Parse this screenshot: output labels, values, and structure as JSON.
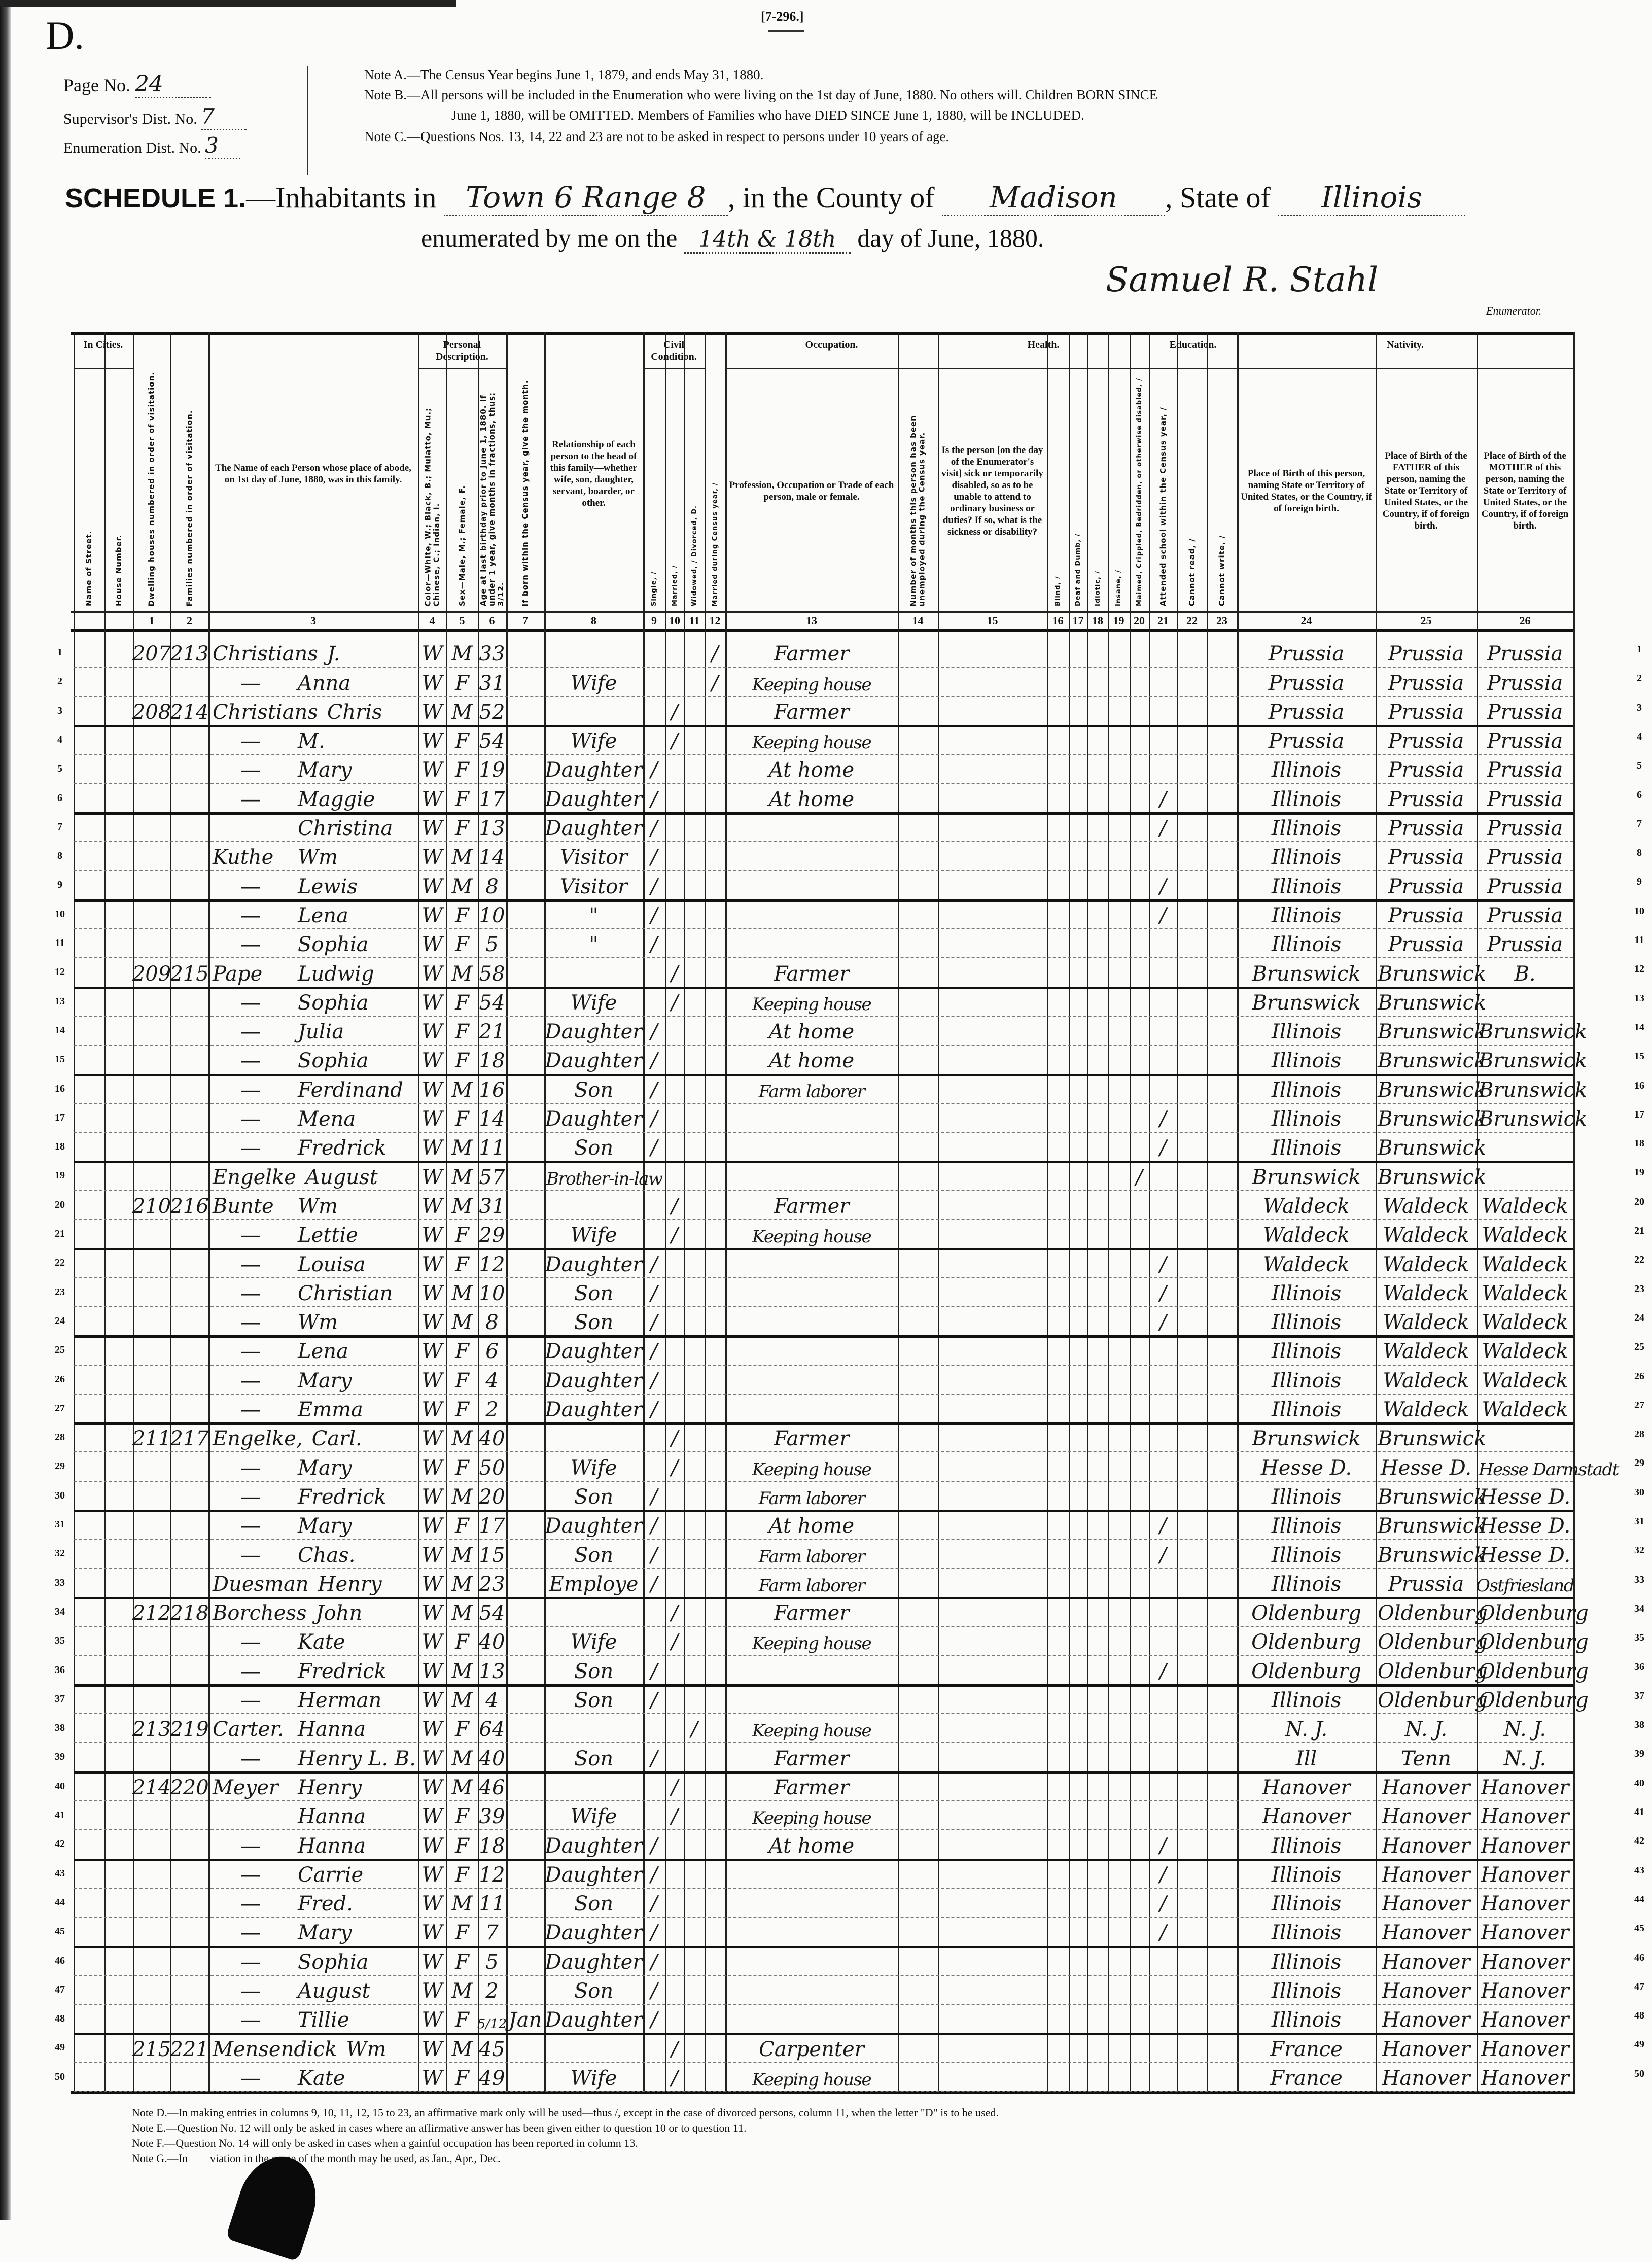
{
  "form_number": "[7-296.]",
  "form_letter": "D.",
  "page_info": {
    "page_label": "Page No.",
    "page_value": "24",
    "supervisor_label": "Supervisor's Dist. No.",
    "supervisor_value": "7",
    "enumeration_label": "Enumeration Dist. No.",
    "enumeration_value": "3"
  },
  "notes_top": [
    "Note A.—The Census Year begins June 1, 1879, and ends May 31, 1880.",
    "Note B.—All persons will be included in the Enumeration who were living on the 1st day of June, 1880.  No others will.  Children BORN SINCE",
    "June 1, 1880, will be OMITTED.  Members of Families who have DIED SINCE June 1, 1880, will be INCLUDED.",
    "Note C.—Questions Nos. 13, 14, 22 and 23 are not to be asked in respect to persons under 10 years of age."
  ],
  "schedule": {
    "title": "SCHEDULE 1.",
    "inhabitants_in": "—Inhabitants in",
    "place": "Town 6 Range 8",
    "county_label": ", in the County of",
    "county": "Madison",
    "state_label": ", State of",
    "state": "Illinois",
    "enumerated_label": "enumerated by me on the",
    "days": "14th & 18th",
    "day_suffix": "day of June, 1880.",
    "signature": "Samuel R. Stahl",
    "enumerator_label": "Enumerator."
  },
  "header": {
    "groups": {
      "in_cities": "In Cities.",
      "personal": "Personal Description.",
      "civil": "Civil Condition.",
      "occupation": "Occupation.",
      "health": "Health.",
      "education": "Education.",
      "nativity": "Nativity."
    },
    "columns": [
      {
        "label": "Name of Street.",
        "num": ""
      },
      {
        "label": "House Number.",
        "num": ""
      },
      {
        "label": "Dwelling houses numbered in order of visitation.",
        "num": "1"
      },
      {
        "label": "Families numbered in order of visitation.",
        "num": "2"
      },
      {
        "label": "The Name of each Person whose place of abode, on 1st day of June, 1880, was in this family.",
        "num": "3"
      },
      {
        "label": "Color—White, W.; Black, B.; Mulatto, Mu.; Chinese, C.; Indian, I.",
        "num": "4"
      },
      {
        "label": "Sex—Male, M.; Female, F.",
        "num": "5"
      },
      {
        "label": "Age at last birthday prior to June 1, 1880. If under 1 year, give months in fractions, thus: 3/12.",
        "num": "6"
      },
      {
        "label": "If born within the Census year, give the month.",
        "num": "7"
      },
      {
        "label": "Relationship of each person to the head of this family—whether wife, son, daughter, servant, boarder, or other.",
        "num": "8"
      },
      {
        "label": "Single, /",
        "num": "9"
      },
      {
        "label": "Married, /",
        "num": "10"
      },
      {
        "label": "Widowed, /  Divorced, D.",
        "num": "11"
      },
      {
        "label": "Married during Census year, /",
        "num": "12"
      },
      {
        "label": "Profession, Occupation or Trade of each person, male or female.",
        "num": "13"
      },
      {
        "label": "Number of months this person has been unemployed during the Census year.",
        "num": "14"
      },
      {
        "label": "Is the person [on the day of the Enumerator's visit] sick or temporarily disabled, so as to be unable to attend to ordinary business or duties? If so, what is the sickness or disability?",
        "num": "15"
      },
      {
        "label": "Blind, /",
        "num": "16"
      },
      {
        "label": "Deaf and Dumb, /",
        "num": "17"
      },
      {
        "label": "Idiotic, /",
        "num": "18"
      },
      {
        "label": "Insane, /",
        "num": "19"
      },
      {
        "label": "Maimed, Crippled, Bedridden, or otherwise disabled, /",
        "num": "20"
      },
      {
        "label": "Attended school within the Census year, /",
        "num": "21"
      },
      {
        "label": "Cannot read, /",
        "num": "22"
      },
      {
        "label": "Cannot write, /",
        "num": "23"
      },
      {
        "label": "Place of Birth of this person, naming State or Territory of United States, or the Country, if of foreign birth.",
        "num": "24"
      },
      {
        "label": "Place of Birth of the FATHER of this person, naming the State or Territory of United States, or the Country, if of foreign birth.",
        "num": "25"
      },
      {
        "label": "Place of Birth of the MOTHER of this person, naming the State or Territory of United States, or the Country, if of foreign birth.",
        "num": "26"
      }
    ]
  },
  "rows": [
    {
      "dw": "207",
      "fam": "213",
      "surname": "Christians",
      "given": "J.",
      "color": "W",
      "sex": "M",
      "age": "33",
      "mdcy": "/",
      "occ": "Farmer",
      "birth": "Prussia",
      "father": "Prussia",
      "mother": "Prussia"
    },
    {
      "surname": "—",
      "given": "Anna",
      "color": "W",
      "sex": "F",
      "age": "31",
      "rel": "Wife",
      "mdcy": "/",
      "occ": "Keeping house",
      "birth": "Prussia",
      "father": "Prussia",
      "mother": "Prussia"
    },
    {
      "dw": "208",
      "fam": "214",
      "surname": "Christians",
      "given": "Chris",
      "color": "W",
      "sex": "M",
      "age": "52",
      "married": "/",
      "occ": "Farmer",
      "birth": "Prussia",
      "father": "Prussia",
      "mother": "Prussia"
    },
    {
      "surname": "—",
      "given": "M.",
      "color": "W",
      "sex": "F",
      "age": "54",
      "rel": "Wife",
      "married": "/",
      "occ": "Keeping house",
      "birth": "Prussia",
      "father": "Prussia",
      "mother": "Prussia"
    },
    {
      "surname": "—",
      "given": "Mary",
      "color": "W",
      "sex": "F",
      "age": "19",
      "rel": "Daughter",
      "single": "/",
      "occ": "At home",
      "birth": "Illinois",
      "father": "Prussia",
      "mother": "Prussia"
    },
    {
      "surname": "—",
      "given": "Maggie",
      "color": "W",
      "sex": "F",
      "age": "17",
      "rel": "Daughter",
      "single": "/",
      "occ": "At home",
      "school": "/",
      "birth": "Illinois",
      "father": "Prussia",
      "mother": "Prussia"
    },
    {
      "given": "Christina",
      "color": "W",
      "sex": "F",
      "age": "13",
      "rel": "Daughter",
      "single": "/",
      "school": "/",
      "birth": "Illinois",
      "father": "Prussia",
      "mother": "Prussia"
    },
    {
      "surname": "Kuthe",
      "given": "Wm",
      "color": "W",
      "sex": "M",
      "age": "14",
      "rel": "Visitor",
      "single": "/",
      "birth": "Illinois",
      "father": "Prussia",
      "mother": "Prussia"
    },
    {
      "surname": "—",
      "given": "Lewis",
      "color": "W",
      "sex": "M",
      "age": "8",
      "rel": "Visitor",
      "single": "/",
      "school": "/",
      "birth": "Illinois",
      "father": "Prussia",
      "mother": "Prussia"
    },
    {
      "surname": "—",
      "given": "Lena",
      "color": "W",
      "sex": "F",
      "age": "10",
      "rel": "\"",
      "single": "/",
      "school": "/",
      "birth": "Illinois",
      "father": "Prussia",
      "mother": "Prussia"
    },
    {
      "surname": "—",
      "given": "Sophia",
      "color": "W",
      "sex": "F",
      "age": "5",
      "rel": "\"",
      "single": "/",
      "birth": "Illinois",
      "father": "Prussia",
      "mother": "Prussia"
    },
    {
      "dw": "209",
      "fam": "215",
      "surname": "Pape",
      "given": "Ludwig",
      "color": "W",
      "sex": "M",
      "age": "58",
      "married": "/",
      "occ": "Farmer",
      "birth": "Brunswick",
      "father": "Brunswick",
      "mother": "B."
    },
    {
      "surname": "—",
      "given": "Sophia",
      "color": "W",
      "sex": "F",
      "age": "54",
      "rel": "Wife",
      "married": "/",
      "occ": "Keeping house",
      "birth": "Brunswick",
      "father": "Brunswick"
    },
    {
      "surname": "—",
      "given": "Julia",
      "color": "W",
      "sex": "F",
      "age": "21",
      "rel": "Daughter",
      "single": "/",
      "occ": "At home",
      "birth": "Illinois",
      "father": "Brunswick",
      "mother": "Brunswick"
    },
    {
      "surname": "—",
      "given": "Sophia",
      "color": "W",
      "sex": "F",
      "age": "18",
      "rel": "Daughter",
      "single": "/",
      "occ": "At home",
      "birth": "Illinois",
      "father": "Brunswick",
      "mother": "Brunswick"
    },
    {
      "surname": "—",
      "given": "Ferdinand",
      "color": "W",
      "sex": "M",
      "age": "16",
      "rel": "Son",
      "single": "/",
      "occ": "Farm laborer",
      "birth": "Illinois",
      "father": "Brunswick",
      "mother": "Brunswick"
    },
    {
      "surname": "—",
      "given": "Mena",
      "color": "W",
      "sex": "F",
      "age": "14",
      "rel": "Daughter",
      "single": "/",
      "school": "/",
      "birth": "Illinois",
      "father": "Brunswick",
      "mother": "Brunswick"
    },
    {
      "surname": "—",
      "given": "Fredrick",
      "color": "W",
      "sex": "M",
      "age": "11",
      "rel": "Son",
      "single": "/",
      "school": "/",
      "birth": "Illinois",
      "father": "Brunswick"
    },
    {
      "surname": "Engelke",
      "given": "August",
      "color": "W",
      "sex": "M",
      "age": "57",
      "rel": "Brother-in-law",
      "maimed": "/",
      "birth": "Brunswick",
      "father": "Brunswick"
    },
    {
      "dw": "210",
      "fam": "216",
      "surname": "Bunte",
      "given": "Wm",
      "color": "W",
      "sex": "M",
      "age": "31",
      "married": "/",
      "occ": "Farmer",
      "birth": "Waldeck",
      "father": "Waldeck",
      "mother": "Waldeck"
    },
    {
      "surname": "—",
      "given": "Lettie",
      "color": "W",
      "sex": "F",
      "age": "29",
      "rel": "Wife",
      "married": "/",
      "occ": "Keeping house",
      "birth": "Waldeck",
      "father": "Waldeck",
      "mother": "Waldeck"
    },
    {
      "surname": "—",
      "given": "Louisa",
      "color": "W",
      "sex": "F",
      "age": "12",
      "rel": "Daughter",
      "single": "/",
      "school": "/",
      "birth": "Waldeck",
      "father": "Waldeck",
      "mother": "Waldeck"
    },
    {
      "surname": "—",
      "given": "Christian",
      "color": "W",
      "sex": "M",
      "age": "10",
      "rel": "Son",
      "single": "/",
      "school": "/",
      "birth": "Illinois",
      "father": "Waldeck",
      "mother": "Waldeck"
    },
    {
      "surname": "—",
      "given": "Wm",
      "color": "W",
      "sex": "M",
      "age": "8",
      "rel": "Son",
      "single": "/",
      "school": "/",
      "birth": "Illinois",
      "father": "Waldeck",
      "mother": "Waldeck"
    },
    {
      "surname": "—",
      "given": "Lena",
      "color": "W",
      "sex": "F",
      "age": "6",
      "rel": "Daughter",
      "single": "/",
      "birth": "Illinois",
      "father": "Waldeck",
      "mother": "Waldeck"
    },
    {
      "surname": "—",
      "given": "Mary",
      "color": "W",
      "sex": "F",
      "age": "4",
      "rel": "Daughter",
      "single": "/",
      "birth": "Illinois",
      "father": "Waldeck",
      "mother": "Waldeck"
    },
    {
      "surname": "—",
      "given": "Emma",
      "color": "W",
      "sex": "F",
      "age": "2",
      "rel": "Daughter",
      "single": "/",
      "birth": "Illinois",
      "father": "Waldeck",
      "mother": "Waldeck"
    },
    {
      "dw": "211",
      "fam": "217",
      "surname": "Engelke,",
      "given": "Carl.",
      "color": "W",
      "sex": "M",
      "age": "40",
      "married": "/",
      "occ": "Farmer",
      "birth": "Brunswick",
      "father": "Brunswick"
    },
    {
      "surname": "—",
      "given": "Mary",
      "color": "W",
      "sex": "F",
      "age": "50",
      "rel": "Wife",
      "married": "/",
      "occ": "Keeping house",
      "birth": "Hesse D.",
      "father": "Hesse D.",
      "mother": "Hesse Darmstadt"
    },
    {
      "surname": "—",
      "given": "Fredrick",
      "color": "W",
      "sex": "M",
      "age": "20",
      "rel": "Son",
      "single": "/",
      "occ": "Farm laborer",
      "birth": "Illinois",
      "father": "Brunswick",
      "mother": "Hesse D."
    },
    {
      "surname": "—",
      "given": "Mary",
      "color": "W",
      "sex": "F",
      "age": "17",
      "rel": "Daughter",
      "single": "/",
      "occ": "At home",
      "school": "/",
      "birth": "Illinois",
      "father": "Brunswick",
      "mother": "Hesse D."
    },
    {
      "surname": "—",
      "given": "Chas.",
      "color": "W",
      "sex": "M",
      "age": "15",
      "rel": "Son",
      "single": "/",
      "occ": "Farm laborer",
      "school": "/",
      "birth": "Illinois",
      "father": "Brunswick",
      "mother": "Hesse D."
    },
    {
      "surname": "Duesman",
      "given": "Henry",
      "color": "W",
      "sex": "M",
      "age": "23",
      "rel": "Employe",
      "single": "/",
      "occ": "Farm laborer",
      "birth": "Illinois",
      "father": "Prussia",
      "mother": "Ostfriesland"
    },
    {
      "dw": "212",
      "fam": "218",
      "surname": "Borchess",
      "given": "John",
      "color": "W",
      "sex": "M",
      "age": "54",
      "married": "/",
      "occ": "Farmer",
      "birth": "Oldenburg",
      "father": "Oldenburg",
      "mother": "Oldenburg"
    },
    {
      "surname": "—",
      "given": "Kate",
      "color": "W",
      "sex": "F",
      "age": "40",
      "rel": "Wife",
      "married": "/",
      "occ": "Keeping house",
      "birth": "Oldenburg",
      "father": "Oldenburg",
      "mother": "Oldenburg"
    },
    {
      "surname": "—",
      "given": "Fredrick",
      "color": "W",
      "sex": "M",
      "age": "13",
      "rel": "Son",
      "single": "/",
      "school": "/",
      "birth": "Oldenburg",
      "father": "Oldenburg",
      "mother": "Oldenburg"
    },
    {
      "surname": "—",
      "given": "Herman",
      "color": "W",
      "sex": "M",
      "age": "4",
      "rel": "Son",
      "single": "/",
      "birth": "Illinois",
      "father": "Oldenburg",
      "mother": "Oldenburg"
    },
    {
      "dw": "213",
      "fam": "219",
      "surname": "Carter.",
      "given": "Hanna",
      "color": "W",
      "sex": "F",
      "age": "64",
      "widowed": "/",
      "occ": "Keeping house",
      "birth": "N. J.",
      "father": "N. J.",
      "mother": "N. J."
    },
    {
      "surname": "—",
      "given": "Henry L. B.",
      "color": "W",
      "sex": "M",
      "age": "40",
      "rel": "Son",
      "single": "/",
      "occ": "Farmer",
      "birth": "Ill",
      "father": "Tenn",
      "mother": "N. J."
    },
    {
      "dw": "214",
      "fam": "220",
      "surname": "Meyer",
      "given": "Henry",
      "color": "W",
      "sex": "M",
      "age": "46",
      "married": "/",
      "occ": "Farmer",
      "birth": "Hanover",
      "father": "Hanover",
      "mother": "Hanover"
    },
    {
      "given": "Hanna",
      "color": "W",
      "sex": "F",
      "age": "39",
      "rel": "Wife",
      "married": "/",
      "occ": "Keeping house",
      "birth": "Hanover",
      "father": "Hanover",
      "mother": "Hanover"
    },
    {
      "surname": "—",
      "given": "Hanna",
      "color": "W",
      "sex": "F",
      "age": "18",
      "rel": "Daughter",
      "single": "/",
      "occ": "At home",
      "school": "/",
      "birth": "Illinois",
      "father": "Hanover",
      "mother": "Hanover"
    },
    {
      "surname": "—",
      "given": "Carrie",
      "color": "W",
      "sex": "F",
      "age": "12",
      "rel": "Daughter",
      "single": "/",
      "school": "/",
      "birth": "Illinois",
      "father": "Hanover",
      "mother": "Hanover"
    },
    {
      "surname": "—",
      "given": "Fred.",
      "color": "W",
      "sex": "M",
      "age": "11",
      "rel": "Son",
      "single": "/",
      "school": "/",
      "birth": "Illinois",
      "father": "Hanover",
      "mother": "Hanover"
    },
    {
      "surname": "—",
      "given": "Mary",
      "color": "W",
      "sex": "F",
      "age": "7",
      "rel": "Daughter",
      "single": "/",
      "school": "/",
      "birth": "Illinois",
      "father": "Hanover",
      "mother": "Hanover"
    },
    {
      "surname": "—",
      "given": "Sophia",
      "color": "W",
      "sex": "F",
      "age": "5",
      "rel": "Daughter",
      "single": "/",
      "birth": "Illinois",
      "father": "Hanover",
      "mother": "Hanover"
    },
    {
      "surname": "—",
      "given": "August",
      "color": "W",
      "sex": "M",
      "age": "2",
      "rel": "Son",
      "single": "/",
      "birth": "Illinois",
      "father": "Hanover",
      "mother": "Hanover"
    },
    {
      "surname": "—",
      "given": "Tillie",
      "color": "W",
      "sex": "F",
      "age": "5/12",
      "month": "Jan",
      "rel": "Daughter",
      "single": "/",
      "birth": "Illinois",
      "father": "Hanover",
      "mother": "Hanover"
    },
    {
      "dw": "215",
      "fam": "221",
      "surname": "Mensendick",
      "given": "Wm",
      "color": "W",
      "sex": "M",
      "age": "45",
      "married": "/",
      "occ": "Carpenter",
      "birth": "France",
      "father": "Hanover",
      "mother": "Hanover"
    },
    {
      "surname": "—",
      "given": "Kate",
      "color": "W",
      "sex": "F",
      "age": "49",
      "rel": "Wife",
      "married": "/",
      "occ": "Keeping house",
      "birth": "France",
      "father": "Hanover",
      "mother": "Hanover"
    }
  ],
  "notes_bottom": [
    "Note D.—In making entries in columns 9, 10, 11, 12, 15 to 23, an affirmative mark only will be used—thus /, except in the case of divorced persons, column 11, when the letter \"D\" is to be used.",
    "Note E.—Question No. 12 will only be asked in cases where an affirmative answer has been given either to question 10 or to question 11.",
    "Note F.—Question No. 14 will only be asked in cases when a gainful occupation has been reported in column 13.",
    "Note G.—In        viation in the name of the month may be used, as Jan., Apr., Dec."
  ]
}
